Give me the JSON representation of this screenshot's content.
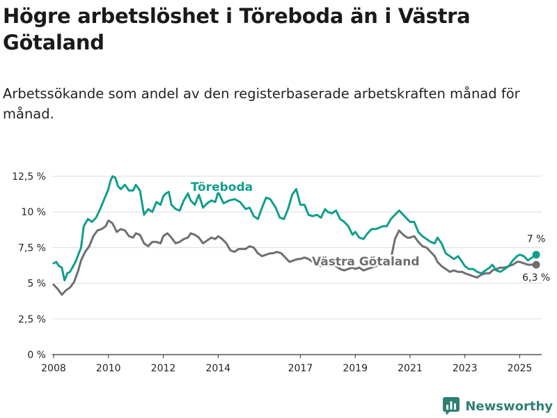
{
  "header": {
    "title": "Högre arbetslöshet i Töreboda än i Västra Götaland",
    "subtitle": "Arbetssökande som andel av den registerbaserade arbetskraften månad för månad."
  },
  "brand": {
    "name": "Newsworthy",
    "icon": "newsworthy-logo-icon"
  },
  "colors": {
    "toreboda": "#0f9e8c",
    "vastra": "#6e6e73",
    "grid": "#dcdcdc",
    "axis": "#333333",
    "brand": "#2e7f74"
  },
  "chart_data": {
    "type": "line",
    "title": "Högre arbetslöshet i Töreboda än i Västra Götaland",
    "xlabel": "",
    "ylabel": "",
    "xlim": [
      2007.95,
      2025.8
    ],
    "ylim": [
      0,
      12.5
    ],
    "grid": true,
    "y_ticks": [
      0,
      2.5,
      5,
      7.5,
      10,
      12.5
    ],
    "y_tick_labels": [
      "0 %",
      "2,5 %",
      "5 %",
      "7,5 %",
      "10 %",
      "12,5 %"
    ],
    "x_ticks": [
      2008,
      2010,
      2012,
      2014,
      2017,
      2019,
      2021,
      2023,
      2025
    ],
    "x_tick_labels": [
      "2008",
      "2010",
      "2012",
      "2014",
      "2017",
      "2019",
      "2021",
      "2023",
      "2025"
    ],
    "series": [
      {
        "name": "Töreboda",
        "label": "Töreboda",
        "color": "#0f9e8c",
        "end_label": "7 %",
        "x": [
          2008.0,
          2008.1,
          2008.2,
          2008.3,
          2008.4,
          2008.5,
          2008.6,
          2008.8,
          2009.0,
          2009.1,
          2009.25,
          2009.4,
          2009.55,
          2009.7,
          2009.85,
          2010.0,
          2010.08,
          2010.15,
          2010.25,
          2010.35,
          2010.45,
          2010.6,
          2010.75,
          2010.9,
          2011.0,
          2011.15,
          2011.3,
          2011.45,
          2011.6,
          2011.75,
          2011.9,
          2012.0,
          2012.1,
          2012.2,
          2012.3,
          2012.45,
          2012.6,
          2012.75,
          2012.9,
          2013.0,
          2013.15,
          2013.3,
          2013.45,
          2013.6,
          2013.75,
          2013.9,
          2014.0,
          2014.2,
          2014.4,
          2014.6,
          2014.8,
          2015.0,
          2015.15,
          2015.3,
          2015.45,
          2015.6,
          2015.75,
          2015.9,
          2016.1,
          2016.25,
          2016.4,
          2016.55,
          2016.7,
          2016.85,
          2017.0,
          2017.15,
          2017.3,
          2017.45,
          2017.6,
          2017.75,
          2017.9,
          2018.0,
          2018.15,
          2018.3,
          2018.45,
          2018.6,
          2018.75,
          2018.9,
          2019.0,
          2019.15,
          2019.3,
          2019.45,
          2019.6,
          2019.75,
          2019.9,
          2020.0,
          2020.15,
          2020.3,
          2020.45,
          2020.6,
          2020.75,
          2020.9,
          2021.0,
          2021.15,
          2021.3,
          2021.45,
          2021.6,
          2021.75,
          2021.9,
          2022.0,
          2022.15,
          2022.3,
          2022.45,
          2022.6,
          2022.75,
          2022.9,
          2023.0,
          2023.15,
          2023.3,
          2023.45,
          2023.6,
          2023.75,
          2023.9,
          2024.0,
          2024.15,
          2024.3,
          2024.45,
          2024.6,
          2024.75,
          2024.9,
          2025.0,
          2025.15,
          2025.3,
          2025.45,
          2025.6
        ],
        "values": [
          6.4,
          6.5,
          6.2,
          6.1,
          5.2,
          5.7,
          5.8,
          6.5,
          7.5,
          9.0,
          9.5,
          9.3,
          9.6,
          10.2,
          10.9,
          11.6,
          12.2,
          12.5,
          12.4,
          11.8,
          11.6,
          11.9,
          11.5,
          11.5,
          11.9,
          11.5,
          9.8,
          10.2,
          10.0,
          10.7,
          10.5,
          11.1,
          11.3,
          11.4,
          10.5,
          10.2,
          10.1,
          10.8,
          11.3,
          10.8,
          10.5,
          11.2,
          10.3,
          10.6,
          10.8,
          10.7,
          11.4,
          10.6,
          10.8,
          10.9,
          10.7,
          10.2,
          10.3,
          9.7,
          9.5,
          10.3,
          11.0,
          10.9,
          10.3,
          9.6,
          9.5,
          10.2,
          11.2,
          11.6,
          10.5,
          10.5,
          9.8,
          9.7,
          9.8,
          9.6,
          10.2,
          10.0,
          9.9,
          10.1,
          9.5,
          9.3,
          9.0,
          8.4,
          8.6,
          8.2,
          8.1,
          8.5,
          8.8,
          8.8,
          8.9,
          9.0,
          9.0,
          9.5,
          9.8,
          10.1,
          9.8,
          9.5,
          9.3,
          9.3,
          8.6,
          8.3,
          8.1,
          7.9,
          7.8,
          8.2,
          7.8,
          7.1,
          6.9,
          6.7,
          6.9,
          6.5,
          6.2,
          6.0,
          6.0,
          5.8,
          5.7,
          5.9,
          6.1,
          6.3,
          5.9,
          5.8,
          6.0,
          6.2,
          6.6,
          6.9,
          7.0,
          6.9,
          6.6,
          6.8,
          7.0
        ]
      },
      {
        "name": "Västra Götaland",
        "label": "Västra Götaland",
        "color": "#6e6e73",
        "end_label": "6,3 %",
        "x": [
          2008.0,
          2008.15,
          2008.3,
          2008.45,
          2008.6,
          2008.75,
          2008.9,
          2009.0,
          2009.15,
          2009.3,
          2009.45,
          2009.6,
          2009.75,
          2009.9,
          2010.0,
          2010.08,
          2010.15,
          2010.3,
          2010.45,
          2010.6,
          2010.75,
          2010.9,
          2011.0,
          2011.15,
          2011.3,
          2011.45,
          2011.6,
          2011.75,
          2011.9,
          2012.0,
          2012.15,
          2012.3,
          2012.45,
          2012.6,
          2012.75,
          2012.9,
          2013.0,
          2013.15,
          2013.3,
          2013.45,
          2013.6,
          2013.75,
          2013.9,
          2014.0,
          2014.15,
          2014.3,
          2014.45,
          2014.6,
          2014.75,
          2014.9,
          2015.0,
          2015.15,
          2015.3,
          2015.45,
          2015.6,
          2015.75,
          2015.9,
          2016.0,
          2016.15,
          2016.3,
          2016.45,
          2016.6,
          2016.75,
          2016.9,
          2017.0,
          2017.15,
          2017.3,
          2017.45,
          2017.6,
          2017.75,
          2017.9,
          2018.0,
          2018.15,
          2018.3,
          2018.45,
          2018.6,
          2018.75,
          2018.9,
          2019.0,
          2019.15,
          2019.3,
          2019.45,
          2019.6,
          2019.75,
          2019.9,
          2020.0,
          2020.15,
          2020.3,
          2020.45,
          2020.6,
          2020.75,
          2020.9,
          2021.0,
          2021.15,
          2021.3,
          2021.45,
          2021.6,
          2021.75,
          2021.9,
          2022.0,
          2022.15,
          2022.3,
          2022.45,
          2022.6,
          2022.75,
          2022.9,
          2023.0,
          2023.15,
          2023.3,
          2023.45,
          2023.6,
          2023.75,
          2023.9,
          2024.0,
          2024.15,
          2024.3,
          2024.45,
          2024.6,
          2024.75,
          2024.9,
          2025.0,
          2025.15,
          2025.3,
          2025.45,
          2025.6
        ],
        "values": [
          4.9,
          4.6,
          4.2,
          4.5,
          4.7,
          5.1,
          5.9,
          6.6,
          7.2,
          7.6,
          8.3,
          8.7,
          8.8,
          9.0,
          9.4,
          9.3,
          9.2,
          8.6,
          8.8,
          8.7,
          8.3,
          8.2,
          8.5,
          8.4,
          7.8,
          7.6,
          7.9,
          7.9,
          7.8,
          8.3,
          8.5,
          8.2,
          7.8,
          7.9,
          8.1,
          8.2,
          8.5,
          8.4,
          8.2,
          7.8,
          8.0,
          8.2,
          8.1,
          8.3,
          8.1,
          7.8,
          7.3,
          7.2,
          7.4,
          7.4,
          7.4,
          7.6,
          7.5,
          7.1,
          6.9,
          7.0,
          7.1,
          7.1,
          7.2,
          7.1,
          6.8,
          6.5,
          6.6,
          6.7,
          6.7,
          6.8,
          6.7,
          6.5,
          6.3,
          6.2,
          6.3,
          6.2,
          6.3,
          6.2,
          6.0,
          5.9,
          6.0,
          6.1,
          6.0,
          6.1,
          5.9,
          6.0,
          6.1,
          6.2,
          6.3,
          6.4,
          6.5,
          6.7,
          8.1,
          8.7,
          8.4,
          8.2,
          8.2,
          8.3,
          7.9,
          7.6,
          7.5,
          7.2,
          6.9,
          6.5,
          6.2,
          6.0,
          5.8,
          5.9,
          5.8,
          5.8,
          5.7,
          5.6,
          5.5,
          5.4,
          5.6,
          5.7,
          5.7,
          5.9,
          6.0,
          6.1,
          6.1,
          6.2,
          6.3,
          6.5,
          6.5,
          6.4,
          6.3,
          6.3,
          6.3
        ]
      }
    ]
  }
}
